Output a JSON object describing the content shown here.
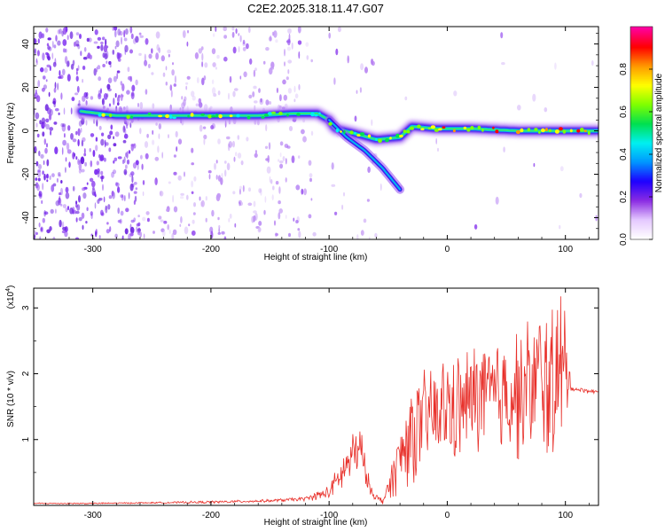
{
  "title": "C2E2.2025.318.11.47.G07",
  "chart_data": [
    {
      "type": "heatmap",
      "xlabel": "Height of straight line (km)",
      "ylabel": "Frequency (Hz)",
      "xlim": [
        -350,
        128
      ],
      "ylim": [
        -50,
        48
      ],
      "xticks": [
        -300,
        -200,
        -100,
        0,
        100
      ],
      "yticks": [
        -40,
        -20,
        0,
        20,
        40
      ],
      "xtick_labels": [
        "-300",
        "-200",
        "-100",
        "0",
        "100"
      ],
      "ytick_labels": [
        "-40",
        "-20",
        "0",
        "20",
        "40"
      ],
      "ridge": [
        {
          "x": -310,
          "y": 9
        },
        {
          "x": -280,
          "y": 7
        },
        {
          "x": -250,
          "y": 7
        },
        {
          "x": -200,
          "y": 7
        },
        {
          "x": -160,
          "y": 7
        },
        {
          "x": -130,
          "y": 8
        },
        {
          "x": -110,
          "y": 8
        },
        {
          "x": -100,
          "y": 5
        },
        {
          "x": -95,
          "y": 1
        },
        {
          "x": -80,
          "y": -1
        },
        {
          "x": -60,
          "y": -4
        },
        {
          "x": -40,
          "y": -3
        },
        {
          "x": -30,
          "y": 2
        },
        {
          "x": -10,
          "y": 1
        },
        {
          "x": 20,
          "y": 1
        },
        {
          "x": 60,
          "y": 0
        },
        {
          "x": 100,
          "y": 0
        },
        {
          "x": 128,
          "y": 0
        }
      ],
      "branch": [
        {
          "x": -100,
          "y": 5
        },
        {
          "x": -85,
          "y": -3
        },
        {
          "x": -70,
          "y": -9
        },
        {
          "x": -55,
          "y": -17
        },
        {
          "x": -40,
          "y": -27
        }
      ],
      "colorbar": {
        "label": "Normalized spectral amplitude",
        "range": [
          0,
          1
        ],
        "ticks": [
          0.0,
          0.2,
          0.4,
          0.6,
          0.8
        ],
        "tick_labels": [
          "0.0",
          "0.2",
          "0.4",
          "0.6",
          "0.8"
        ],
        "colors": [
          "#ffffff",
          "#e4c8ff",
          "#8a2be2",
          "#1e00ff",
          "#0096ff",
          "#00f0f0",
          "#00e050",
          "#7fff00",
          "#ffff00",
          "#ff9900",
          "#ff0000",
          "#ff00a0"
        ]
      }
    },
    {
      "type": "line",
      "xlabel": "Height of straight line (km)",
      "ylabel": "SNR (10 * v/v)",
      "multiplier": "(x10",
      "multiplier_exp": "4",
      "multiplier_close": ")",
      "xlim": [
        -350,
        128
      ],
      "ylim": [
        0,
        3.3
      ],
      "xticks": [
        -300,
        -200,
        -100,
        0,
        100
      ],
      "yticks": [
        1,
        2,
        3
      ],
      "xtick_labels": [
        "-300",
        "-200",
        "-100",
        "0",
        "100"
      ],
      "ytick_labels": [
        "1",
        "2",
        "3"
      ],
      "series": [
        {
          "name": "SNR",
          "color": "#e8302a",
          "x": [
            -350,
            -300,
            -250,
            -200,
            -150,
            -120,
            -100,
            -90,
            -82,
            -76,
            -72,
            -68,
            -62,
            -55,
            -50,
            -45,
            -38,
            -32,
            -28,
            -22,
            -15,
            -8,
            0,
            10,
            20,
            30,
            40,
            50,
            60,
            70,
            80,
            88,
            92,
            96,
            100,
            102,
            106,
            110,
            120,
            128
          ],
          "values": [
            0.03,
            0.03,
            0.04,
            0.05,
            0.07,
            0.1,
            0.2,
            0.45,
            0.7,
            0.85,
            0.75,
            0.4,
            0.15,
            0.06,
            0.25,
            0.5,
            0.8,
            1.05,
            1.15,
            1.2,
            1.4,
            1.35,
            1.5,
            1.45,
            1.6,
            1.7,
            1.6,
            1.75,
            1.7,
            1.8,
            1.95,
            1.8,
            2.0,
            1.9,
            2.0,
            1.95,
            1.78,
            1.76,
            1.74,
            1.72
          ],
          "noise": [
            0.01,
            0.01,
            0.01,
            0.02,
            0.02,
            0.03,
            0.1,
            0.25,
            0.35,
            0.4,
            0.35,
            0.15,
            0.05,
            0.05,
            0.15,
            0.35,
            0.55,
            0.75,
            0.75,
            0.7,
            0.75,
            0.75,
            0.8,
            0.8,
            0.8,
            0.85,
            0.9,
            0.9,
            0.95,
            1.0,
            1.1,
            1.2,
            1.3,
            1.3,
            1.35,
            0.3,
            0.05,
            0.03,
            0.03,
            0.03
          ]
        }
      ]
    }
  ]
}
